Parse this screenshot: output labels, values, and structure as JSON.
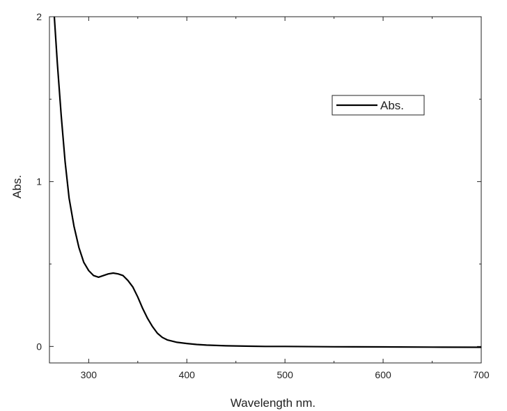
{
  "chart_data": {
    "type": "line",
    "title": "",
    "xlabel": "Wavelength nm.",
    "ylabel": "Abs.",
    "xlim": [
      260,
      700
    ],
    "ylim": [
      -0.1,
      2.0
    ],
    "x_ticks": [
      300,
      400,
      500,
      600,
      700
    ],
    "y_ticks": [
      0,
      1,
      2
    ],
    "grid": false,
    "legend_position": "top-right",
    "series": [
      {
        "name": "Abs.",
        "color": "#000000",
        "x": [
          265,
          268,
          272,
          276,
          280,
          285,
          290,
          295,
          300,
          305,
          310,
          315,
          320,
          325,
          330,
          335,
          340,
          345,
          350,
          355,
          360,
          365,
          370,
          375,
          380,
          390,
          400,
          410,
          420,
          440,
          460,
          480,
          500,
          550,
          600,
          650,
          700
        ],
        "y": [
          2.0,
          1.72,
          1.4,
          1.12,
          0.9,
          0.73,
          0.6,
          0.51,
          0.46,
          0.43,
          0.42,
          0.43,
          0.44,
          0.445,
          0.44,
          0.43,
          0.4,
          0.36,
          0.3,
          0.23,
          0.17,
          0.12,
          0.08,
          0.055,
          0.04,
          0.025,
          0.018,
          0.012,
          0.008,
          0.004,
          0.002,
          0.0,
          0.0,
          -0.002,
          -0.003,
          -0.004,
          -0.005
        ]
      }
    ]
  }
}
